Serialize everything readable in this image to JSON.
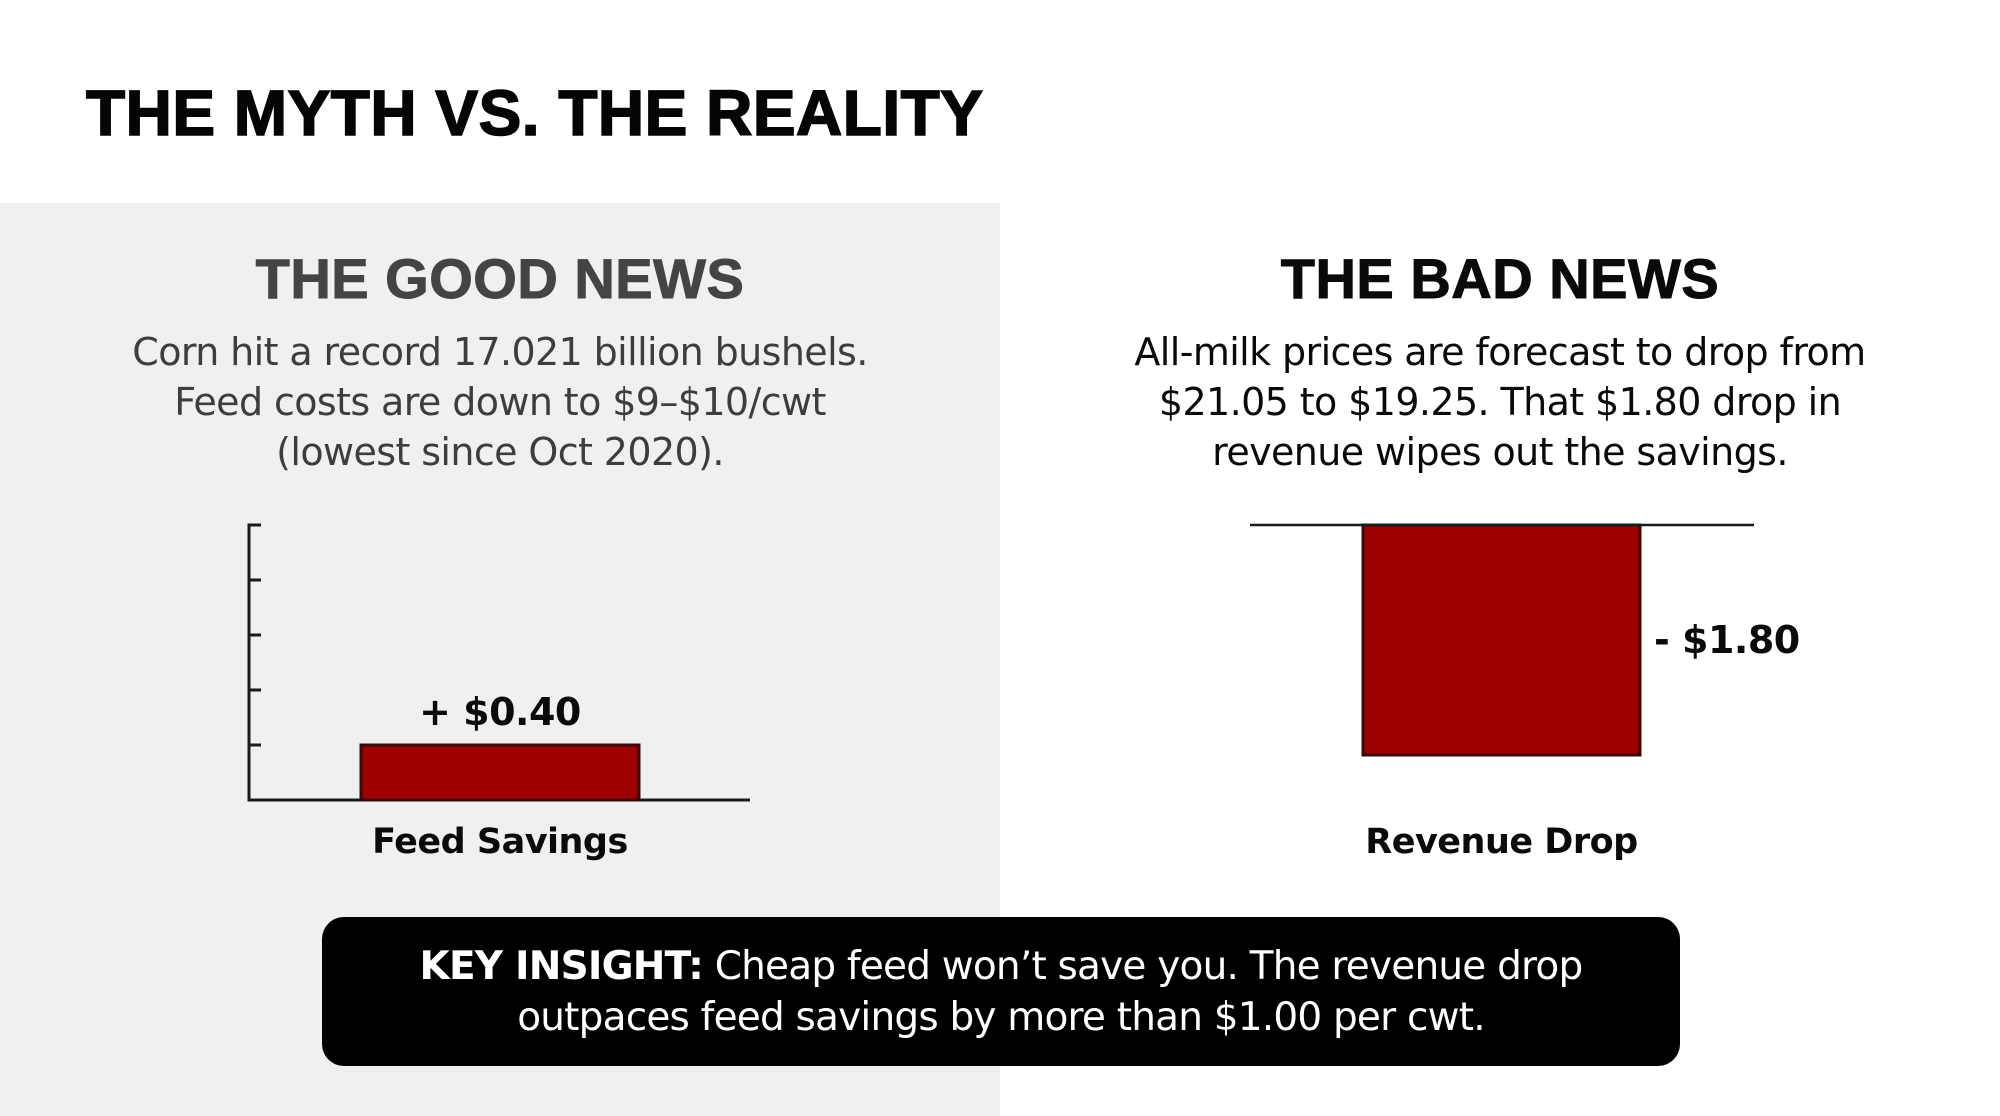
{
  "title": "THE MYTH VS. THE REALITY",
  "colors": {
    "bar_fill": "#9e0000",
    "bar_stroke": "#3a0a0a",
    "left_panel_bg": "#f0f0f0",
    "insight_bg": "#000000",
    "insight_text": "#ffffff"
  },
  "good_news": {
    "heading": "THE GOOD NEWS",
    "body_lines": [
      "Corn hit a record 17.021 billion bushels.",
      "Feed costs are down to $9–$10/cwt",
      "(lowest since Oct 2020)."
    ]
  },
  "bad_news": {
    "heading": "THE BAD NEWS",
    "body_lines": [
      "All-milk prices are forecast to drop from",
      "$21.05 to $19.25. That $1.80 drop in",
      "revenue wipes out the savings."
    ]
  },
  "key_insight": {
    "label": "KEY INSIGHT:",
    "line1_rest": " Cheap feed won’t save you. The revenue drop",
    "line2": "outpaces feed savings by more than $1.00 per cwt."
  },
  "chart_data": [
    {
      "type": "bar",
      "title": "",
      "categories": [
        "Feed Savings"
      ],
      "values": [
        0.4
      ],
      "data_labels": [
        "+ $0.40"
      ],
      "xlabel": "",
      "ylabel": "",
      "ylim": [
        0,
        2.0
      ],
      "y_ticks": [
        0.4,
        0.8,
        1.2,
        1.6,
        2.0
      ],
      "y_tick_labels_shown": false,
      "grid": false,
      "legend": "none"
    },
    {
      "type": "bar",
      "title": "",
      "categories": [
        "Revenue Drop"
      ],
      "values": [
        -1.8
      ],
      "data_labels": [
        "- $1.80"
      ],
      "xlabel": "",
      "ylabel": "",
      "ylim": [
        -1.8,
        0
      ],
      "y_ticks": [],
      "y_tick_labels_shown": false,
      "grid": false,
      "legend": "none"
    }
  ]
}
